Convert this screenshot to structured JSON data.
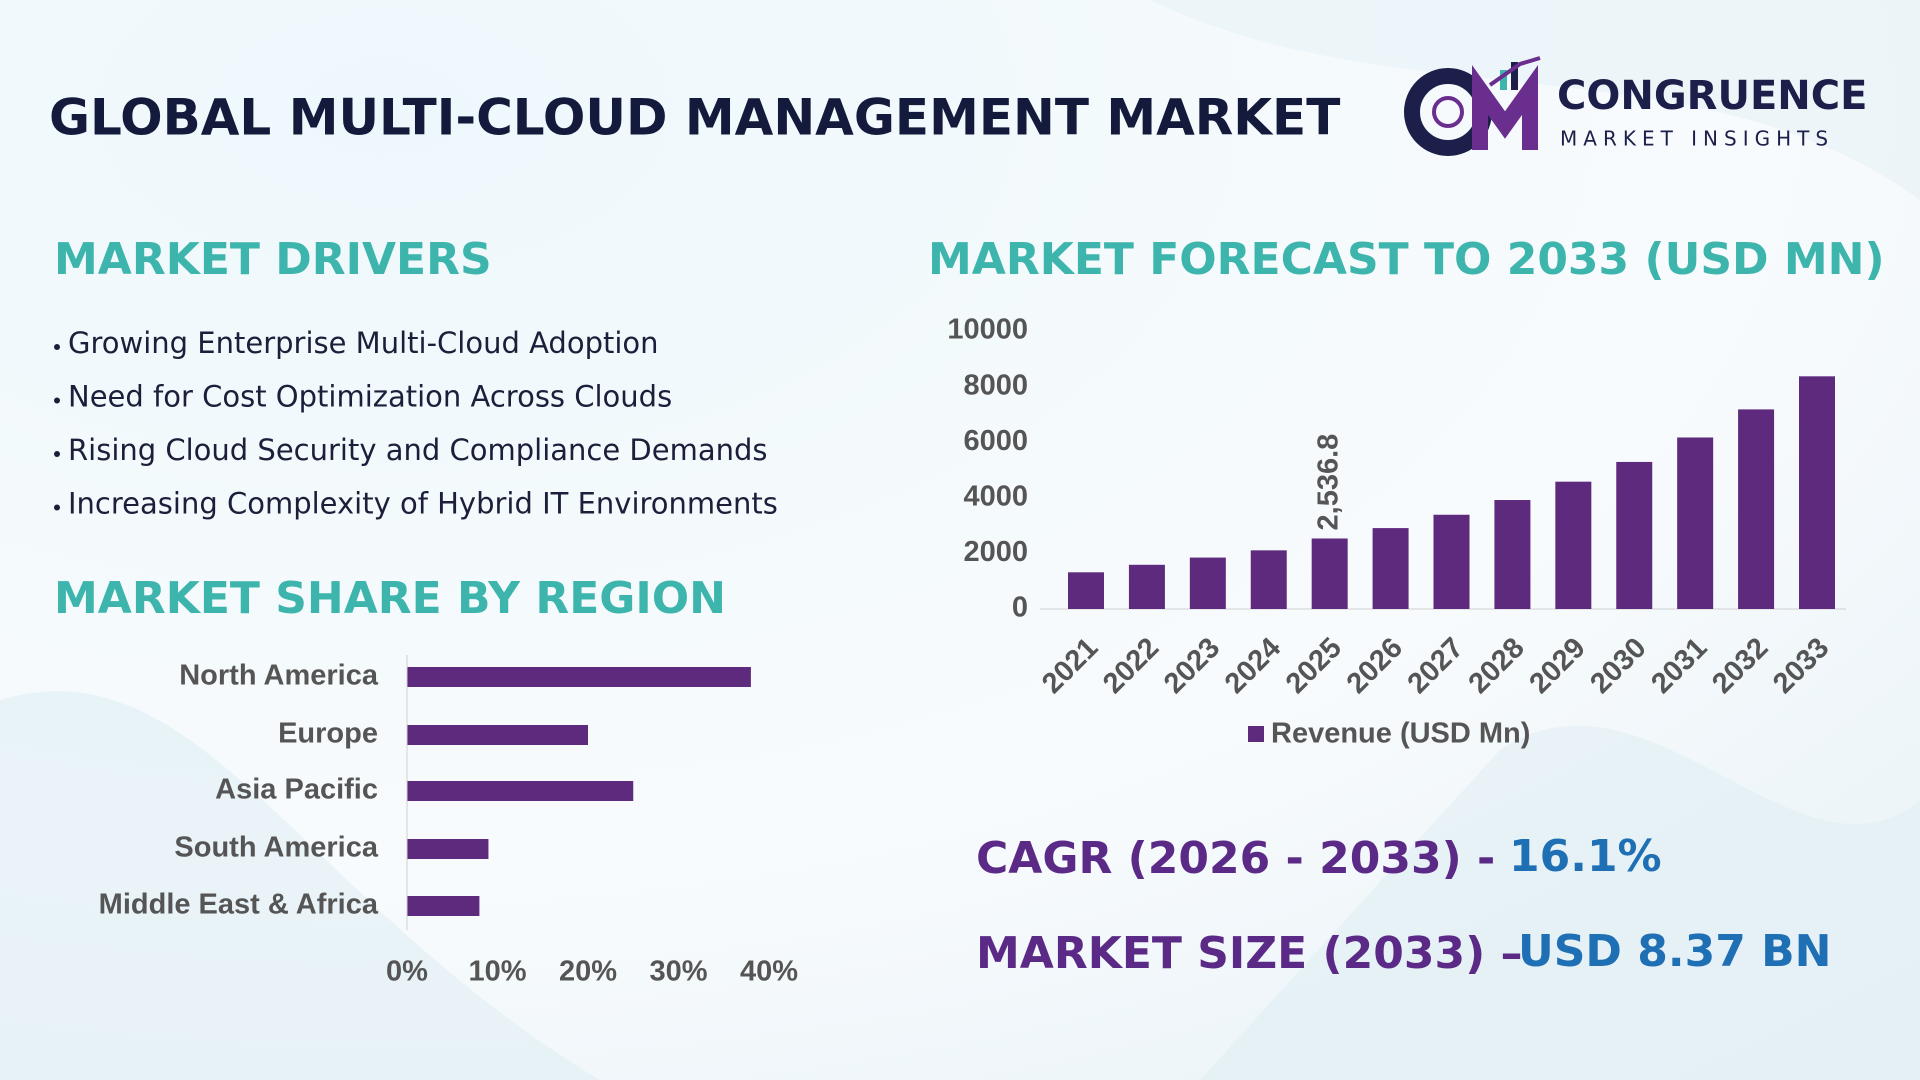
{
  "header": {
    "title": "GLOBAL MULTI-CLOUD MANAGEMENT MARKET",
    "logo": {
      "name": "CONGRUENCE",
      "tagline": "MARKET INSIGHTS"
    }
  },
  "drivers": {
    "heading": "MARKET DRIVERS",
    "items": [
      "Growing Enterprise Multi-Cloud Adoption",
      "Need for Cost Optimization Across Clouds",
      "Rising Cloud Security and Compliance Demands",
      "Increasing Complexity of Hybrid IT Environments"
    ]
  },
  "highlights": [
    {
      "label": "CAGR (2026 - 2033) -",
      "value": "16.1%"
    },
    {
      "label": "MARKET SIZE (2033) –",
      "value": "USD 8.37 BN"
    }
  ],
  "chart_data": [
    {
      "type": "bar",
      "orientation": "horizontal",
      "title": "MARKET SHARE BY REGION",
      "categories": [
        "North America",
        "Europe",
        "Asia Pacific",
        "South America",
        "Middle East & Africa"
      ],
      "values": [
        38,
        20,
        25,
        9,
        8
      ],
      "color": "#5e2a7e",
      "xlim": [
        0,
        40
      ],
      "xticks": [
        {
          "value": 0,
          "label": "0%"
        },
        {
          "value": 10,
          "label": "10%"
        },
        {
          "value": 20,
          "label": "20%"
        },
        {
          "value": 30,
          "label": "30%"
        },
        {
          "value": 40,
          "label": "40%"
        }
      ],
      "grid": false
    },
    {
      "type": "bar",
      "title": "MARKET FORECAST TO 2033 (USD MN)",
      "categories": [
        "2021",
        "2022",
        "2023",
        "2024",
        "2025",
        "2026",
        "2027",
        "2028",
        "2029",
        "2030",
        "2031",
        "2032",
        "2033"
      ],
      "series": [
        {
          "name": "Revenue (USD Mn)",
          "color": "#5e2a7e",
          "values": [
            1320,
            1590,
            1850,
            2110,
            2536.8,
            2910,
            3390,
            3920,
            4580,
            5290,
            6170,
            7180,
            8370
          ],
          "value_labels": [
            null,
            null,
            null,
            null,
            "2,536.8",
            null,
            null,
            null,
            null,
            null,
            null,
            null,
            null
          ]
        }
      ],
      "ylim": [
        0,
        10000
      ],
      "yticks": [
        0,
        2000,
        4000,
        6000,
        8000,
        10000
      ],
      "grid": false,
      "legend": "bottom"
    }
  ]
}
